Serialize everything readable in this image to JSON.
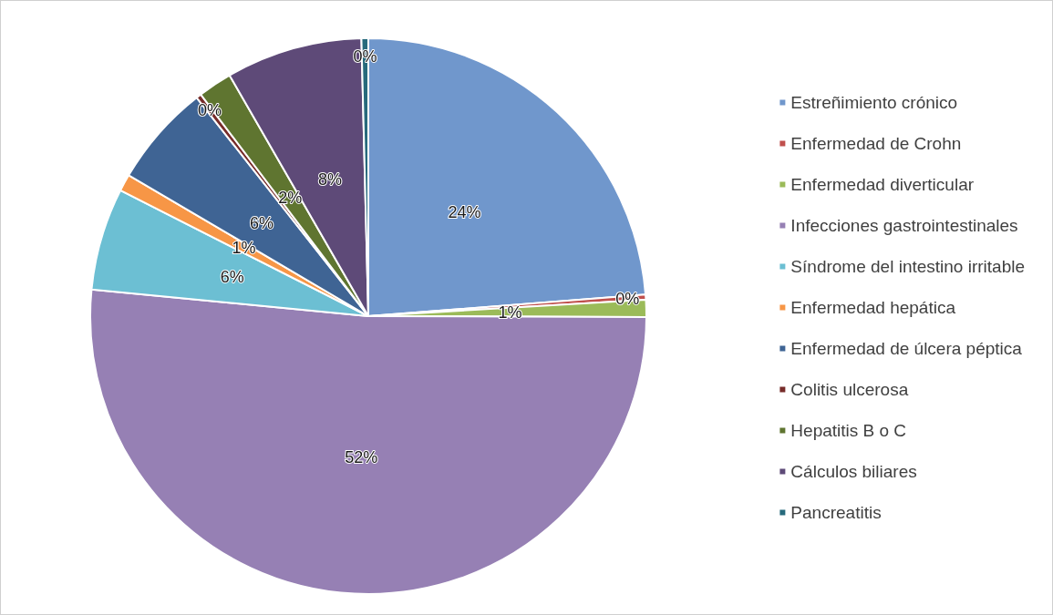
{
  "chart_data": {
    "type": "pie",
    "categories": [
      "Estreñimiento crónico",
      "Enfermedad de Crohn",
      "Enfermedad diverticular",
      "Infecciones gastrointestinales",
      "Síndrome del intestino irritable",
      "Enfermedad hepática",
      "Enfermedad de úlcera péptica",
      "Colitis ulcerosa",
      "Hepatitis B o C",
      "Cálculos biliares",
      "Pancreatitis"
    ],
    "values": [
      24,
      0.3,
      1,
      52,
      6,
      1,
      6,
      0.3,
      2,
      8,
      0.4
    ],
    "value_labels": [
      "24%",
      "0%",
      "1%",
      "52%",
      "6%",
      "1%",
      "6%",
      "0%",
      "2%",
      "8%",
      "0%"
    ],
    "colors": [
      "#7097cc",
      "#c0504d",
      "#9bbb59",
      "#9680b4",
      "#6cbfd3",
      "#f79646",
      "#3f6494",
      "#772c2a",
      "#5f7530",
      "#5e4a78",
      "#276a7c"
    ],
    "legend": "right"
  }
}
